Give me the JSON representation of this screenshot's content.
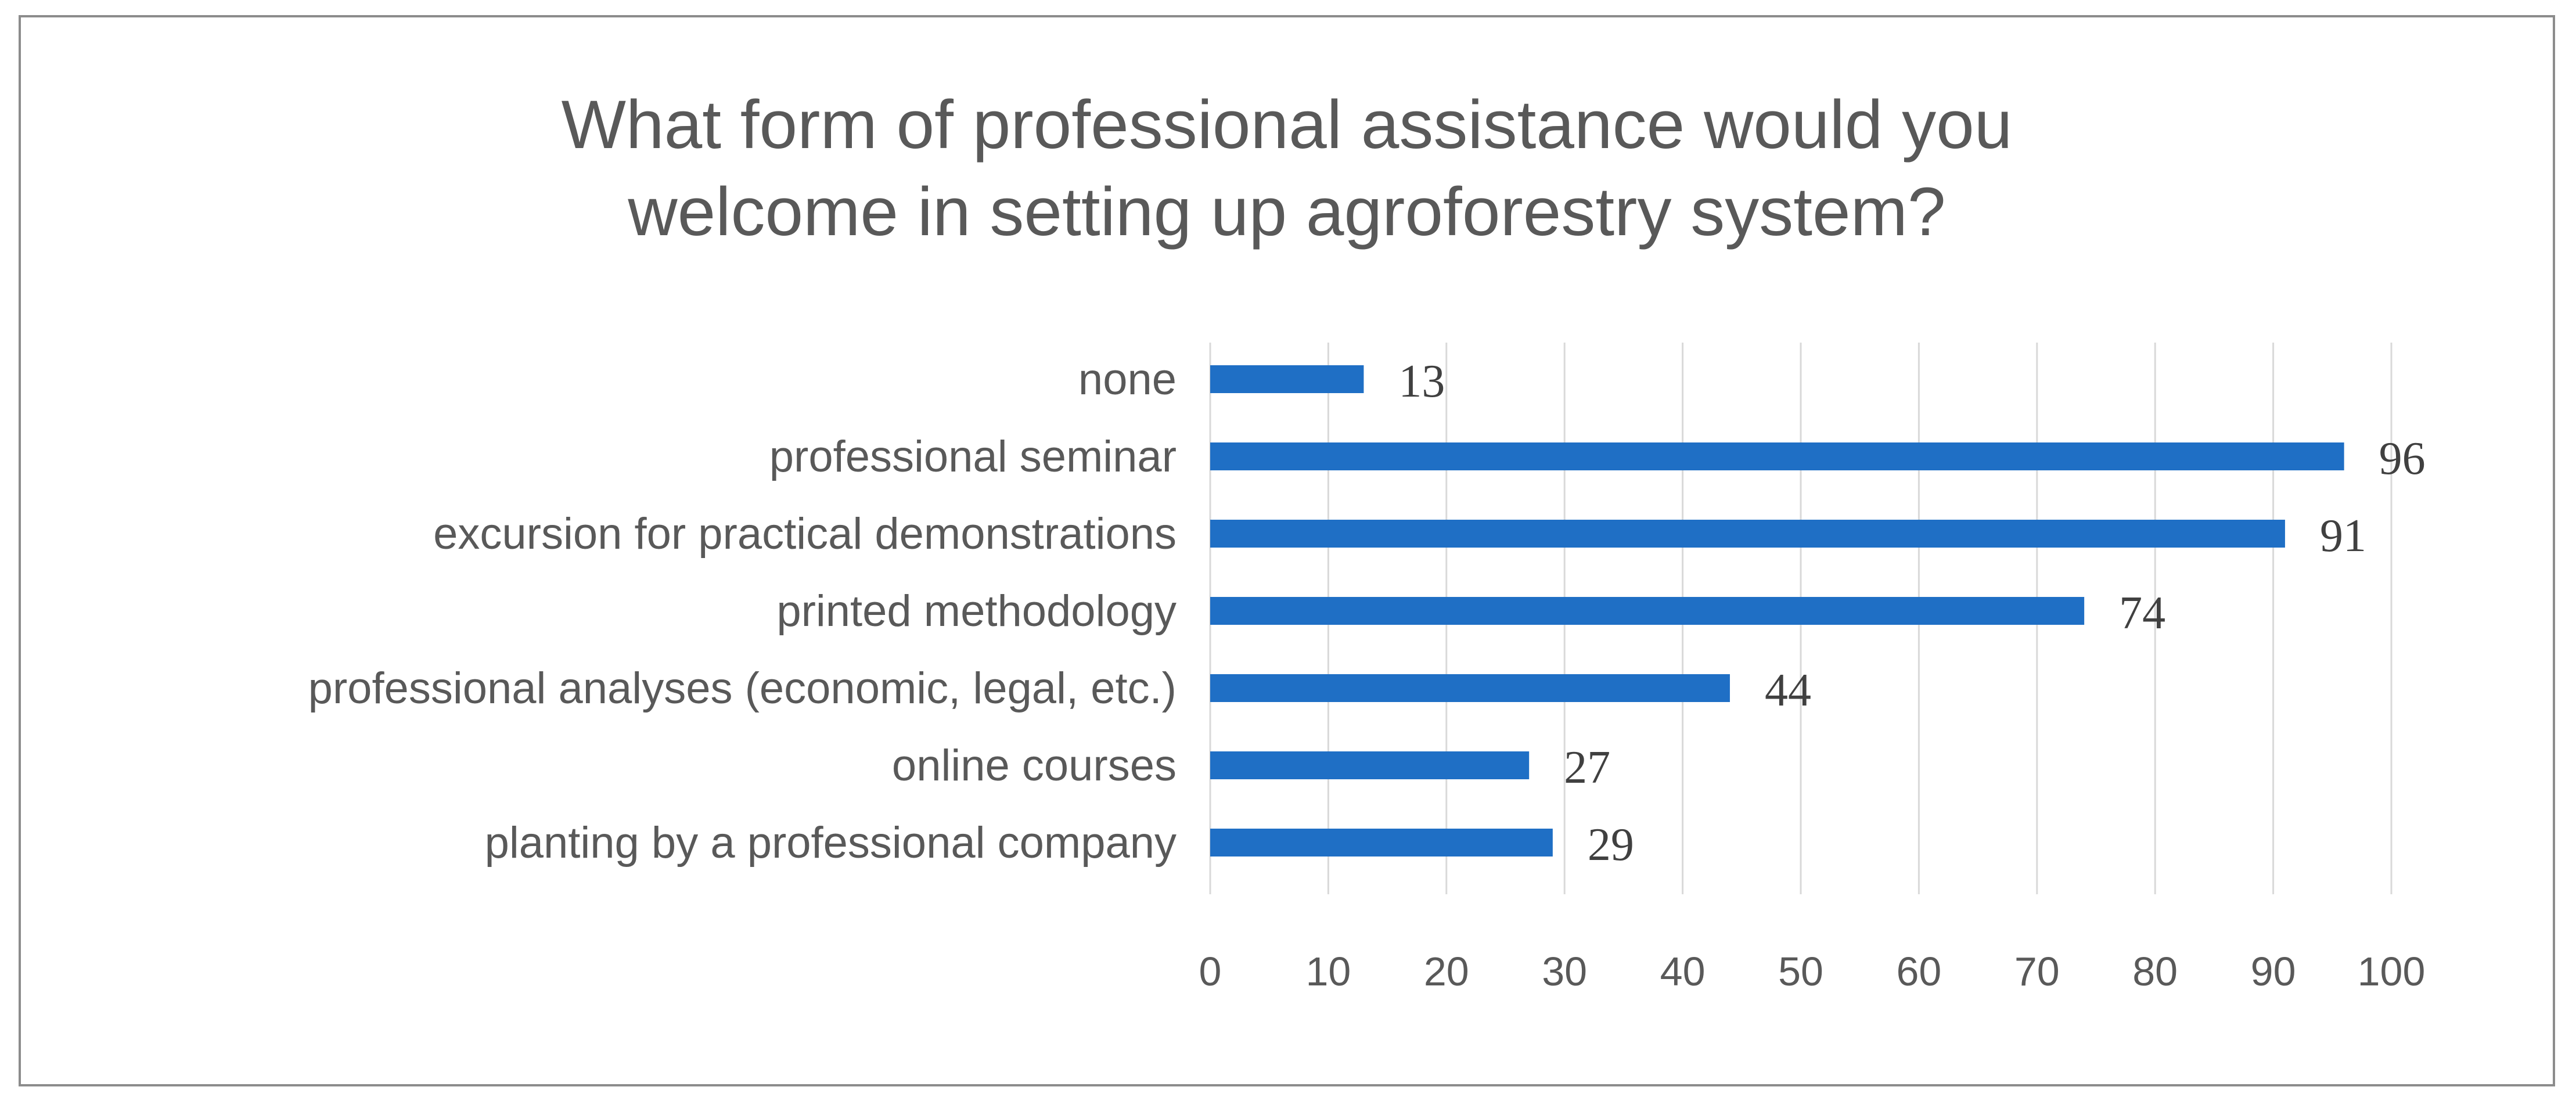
{
  "chart_data": {
    "type": "bar",
    "orientation": "horizontal",
    "title_lines": [
      "What form of professional assistance would you",
      "welcome in setting up agroforestry system?"
    ],
    "categories": [
      "none",
      "professional seminar",
      "excursion for practical demonstrations",
      "printed methodology",
      "professional analyses (economic, legal, etc.)",
      "online courses",
      "planting by a professional company"
    ],
    "values": [
      13,
      96,
      91,
      74,
      44,
      27,
      29
    ],
    "data_labels": [
      "13",
      "96",
      "91",
      "74",
      "44",
      "27",
      "29"
    ],
    "xlim": [
      0,
      100
    ],
    "x_ticks": [
      0,
      10,
      20,
      30,
      40,
      50,
      60,
      70,
      80,
      90,
      100
    ],
    "x_tick_labels": [
      "0",
      "10",
      "20",
      "30",
      "40",
      "50",
      "60",
      "70",
      "80",
      "90",
      "100"
    ],
    "grid": "vertical",
    "legend": "none",
    "bar_color": "#1f6fc5",
    "gridline_color": "#d9d9d9",
    "text_color": "#595959",
    "border_color": "#8c8c8c"
  }
}
